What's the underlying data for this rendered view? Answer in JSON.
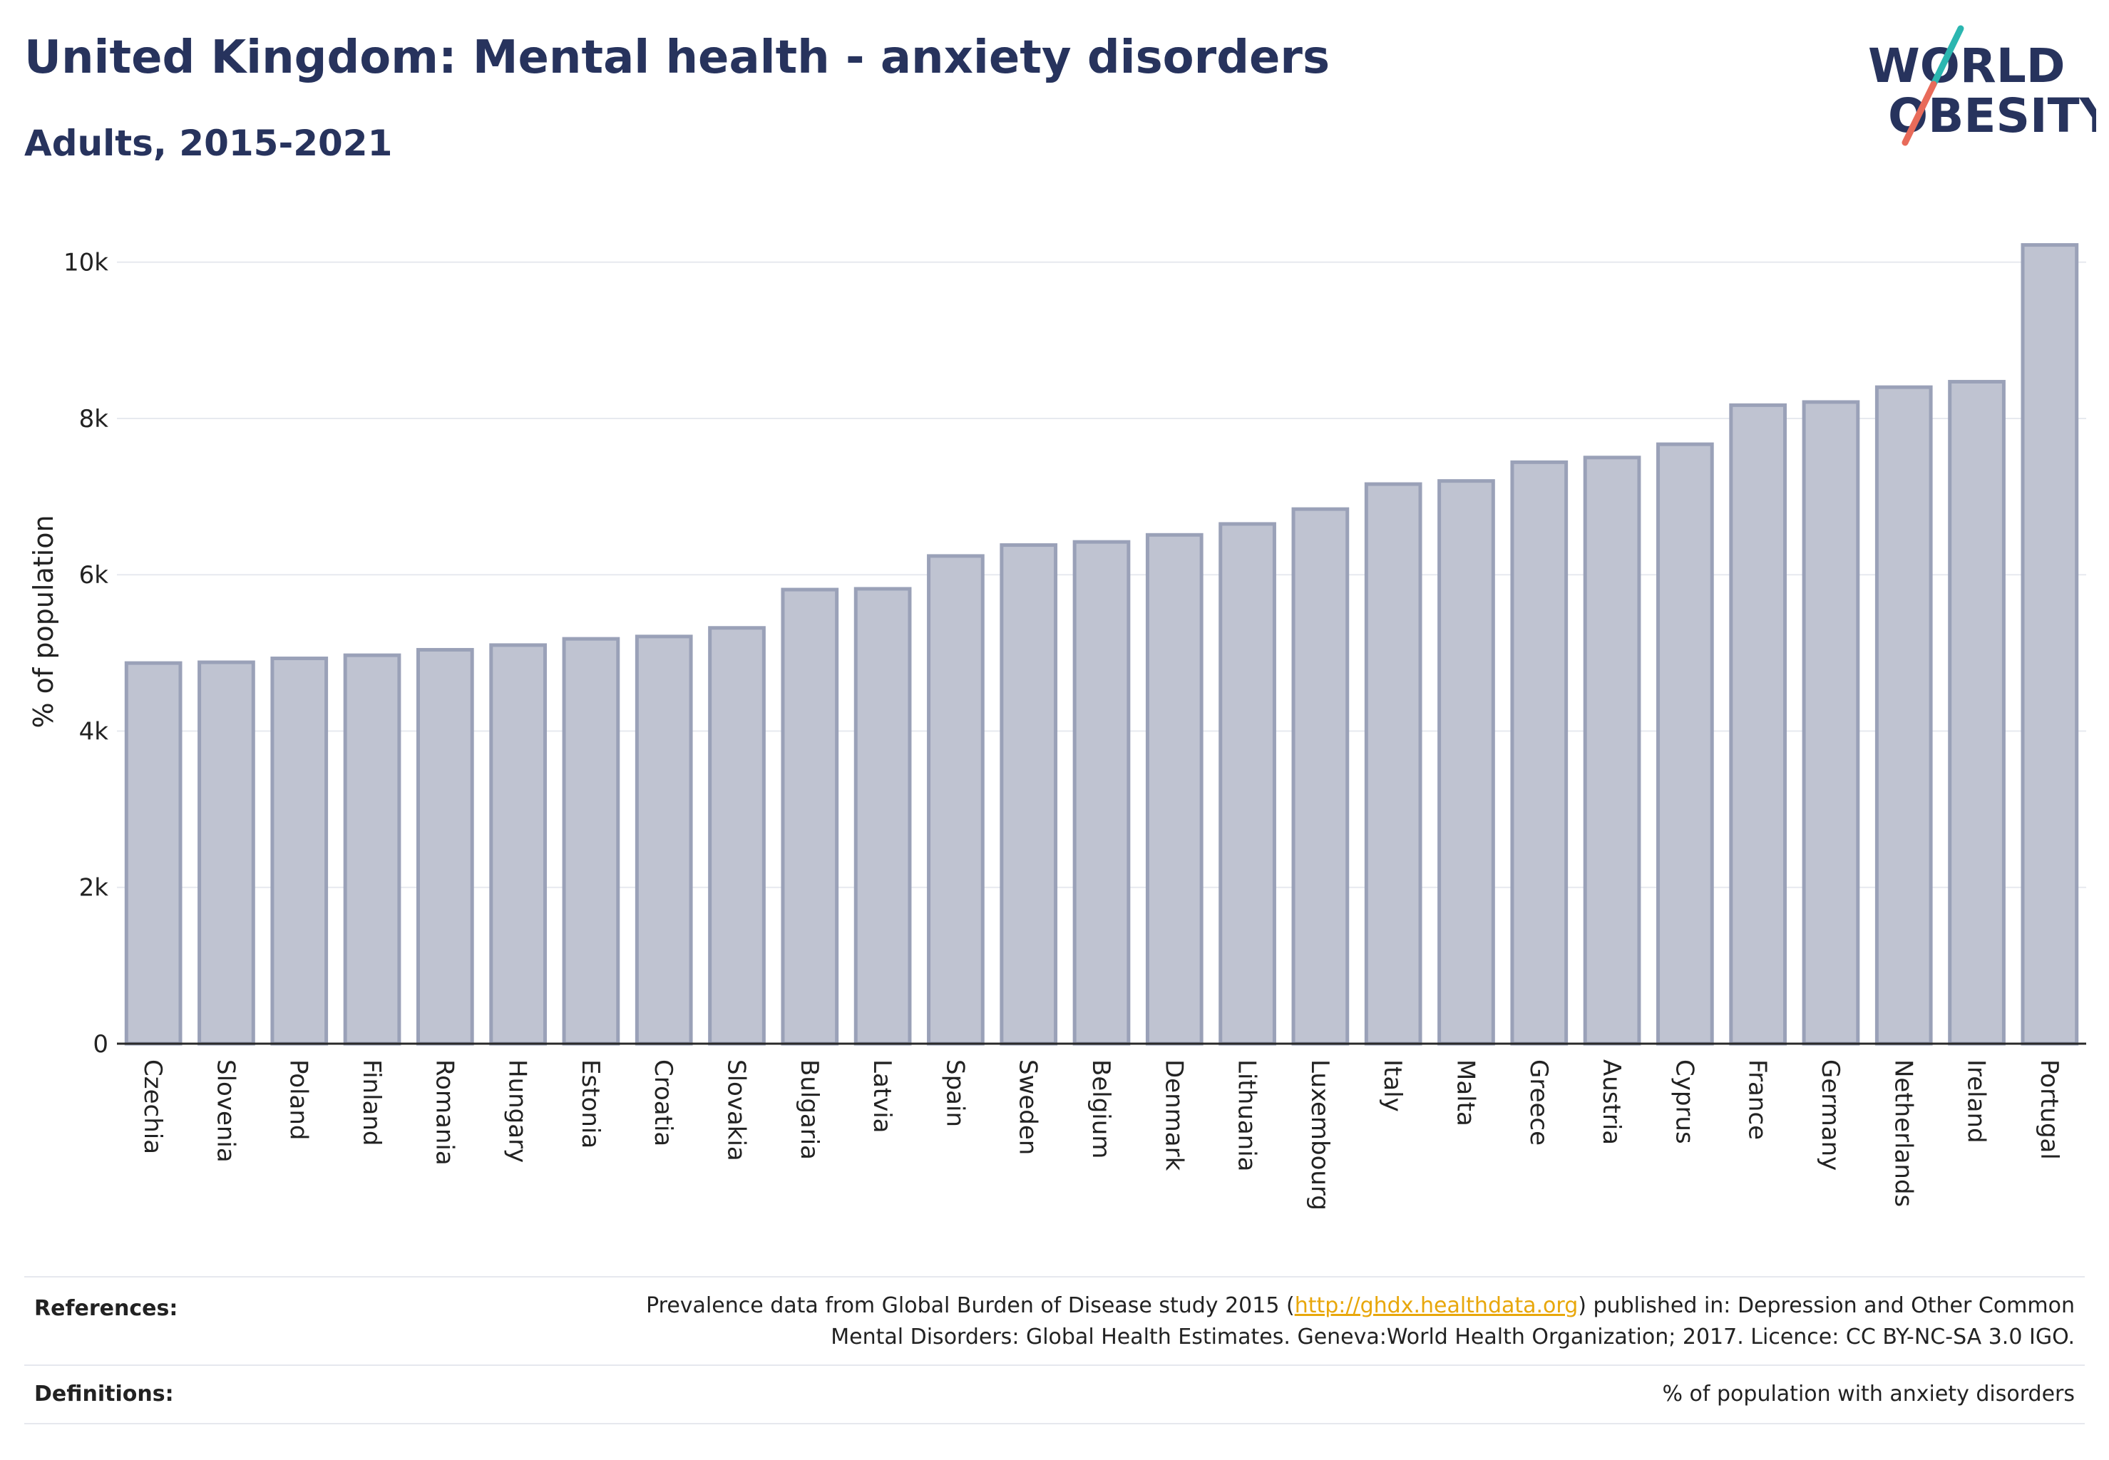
{
  "header": {
    "title": "United Kingdom: Mental health - anxiety disorders",
    "subtitle": "Adults, 2015-2021"
  },
  "logo": {
    "line1": "WORLD",
    "line2": "OBESITY",
    "slash_colors": [
      "#2bb6b0",
      "#e86b5a"
    ]
  },
  "colors": {
    "bar_fill": "#bfc3d1",
    "bar_stroke": "#9aa1b8",
    "grid": "#e7e9ef",
    "axis": "#2a2a2a",
    "title": "#27335d"
  },
  "chart_data": {
    "type": "bar",
    "categories": [
      "Czechia",
      "Slovenia",
      "Poland",
      "Finland",
      "Romania",
      "Hungary",
      "Estonia",
      "Croatia",
      "Slovakia",
      "Bulgaria",
      "Latvia",
      "Spain",
      "Sweden",
      "Belgium",
      "Denmark",
      "Lithuania",
      "Luxembourg",
      "Italy",
      "Malta",
      "Greece",
      "Austria",
      "Cyprus",
      "France",
      "Germany",
      "Netherlands",
      "Ireland",
      "Portugal"
    ],
    "values": [
      4870,
      4880,
      4930,
      4970,
      5040,
      5100,
      5180,
      5210,
      5320,
      5810,
      5820,
      6240,
      6380,
      6420,
      6510,
      6650,
      6840,
      7160,
      7200,
      7440,
      7500,
      7670,
      8170,
      8210,
      8400,
      8470,
      10220
    ],
    "ylabel": "% of population",
    "ylim": [
      0,
      10800
    ],
    "yticks": [
      0,
      2000,
      4000,
      6000,
      8000,
      10000
    ],
    "ytick_labels": [
      "0",
      "2k",
      "4k",
      "6k",
      "8k",
      "10k"
    ],
    "grid": true
  },
  "footer": {
    "references_label": "References:",
    "references_text_1": "Prevalence data from Global Burden of Disease study 2015 (",
    "references_link": "http://ghdx.healthdata.org",
    "references_text_2": ") published in: Depression and Other Common",
    "references_text_3": "Mental Disorders: Global Health Estimates. Geneva:World Health Organization; 2017. Licence: CC BY-NC-SA 3.0 IGO.",
    "definitions_label": "Definitions:",
    "definitions_text": "% of population with anxiety disorders"
  }
}
